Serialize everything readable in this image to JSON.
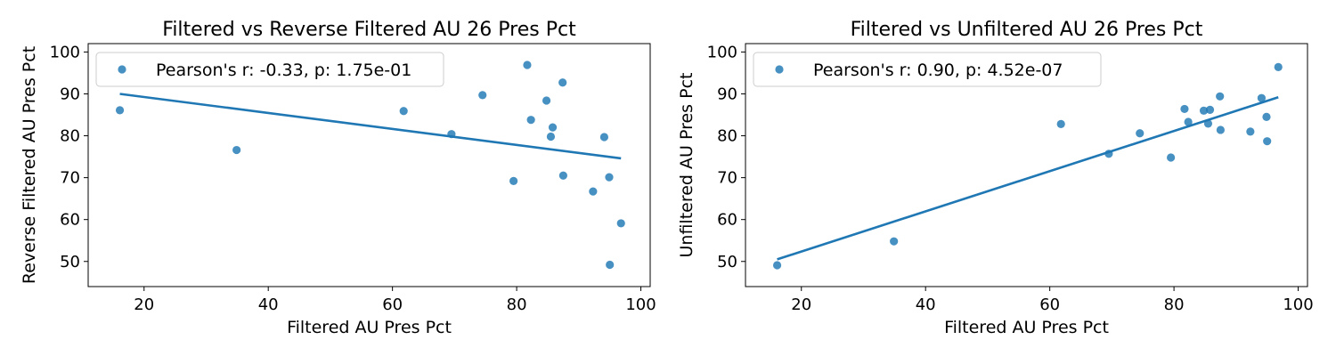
{
  "chart_data": [
    {
      "type": "scatter",
      "title": "Filtered vs Reverse Filtered AU 26 Pres Pct",
      "xlabel": "Filtered AU Pres Pct",
      "ylabel": "Reverse Filtered AU Pres Pct",
      "xlim": [
        11,
        101.5
      ],
      "ylim": [
        44,
        102
      ],
      "xticks": [
        20,
        40,
        60,
        80,
        100
      ],
      "yticks": [
        50,
        60,
        70,
        80,
        90,
        100
      ],
      "grid": false,
      "legend_position": "top-left",
      "color": "#1f77b4",
      "series": [
        {
          "name": "Pearson's r: -0.33, p: 1.75e-01",
          "x": [
            16.1,
            34.9,
            61.8,
            69.5,
            74.5,
            79.5,
            81.7,
            82.3,
            84.8,
            85.5,
            85.8,
            87.4,
            87.5,
            92.3,
            94.1,
            94.9,
            95.0,
            96.8
          ],
          "y": [
            86.1,
            76.6,
            85.9,
            80.4,
            89.7,
            69.2,
            96.9,
            83.8,
            88.4,
            79.8,
            82.0,
            92.7,
            70.5,
            66.7,
            79.7,
            70.1,
            49.2,
            59.1
          ]
        }
      ],
      "regression": {
        "x": [
          16.1,
          96.8
        ],
        "y": [
          90.0,
          74.6
        ]
      }
    },
    {
      "type": "scatter",
      "title": "Filtered vs Unfiltered AU 26 Pres Pct",
      "xlabel": "Filtered AU Pres Pct",
      "ylabel": "Unfiltered AU Pres Pct",
      "xlim": [
        11,
        101.5
      ],
      "ylim": [
        44,
        102
      ],
      "xticks": [
        20,
        40,
        60,
        80,
        100
      ],
      "yticks": [
        50,
        60,
        70,
        80,
        90,
        100
      ],
      "grid": false,
      "legend_position": "top-left",
      "color": "#1f77b4",
      "series": [
        {
          "name": "Pearson's r: 0.90, p: 4.52e-07",
          "x": [
            16.1,
            34.9,
            61.8,
            69.5,
            74.5,
            79.5,
            81.7,
            82.3,
            84.8,
            85.5,
            85.8,
            87.4,
            87.5,
            92.3,
            94.1,
            94.9,
            95.0,
            96.8
          ],
          "y": [
            49.1,
            54.8,
            82.8,
            75.7,
            80.6,
            74.8,
            86.4,
            83.3,
            86.0,
            82.9,
            86.2,
            89.4,
            81.4,
            81.0,
            89.0,
            84.5,
            78.7,
            96.4
          ]
        }
      ],
      "regression": {
        "x": [
          16.1,
          96.8
        ],
        "y": [
          50.5,
          89.2
        ]
      }
    }
  ]
}
